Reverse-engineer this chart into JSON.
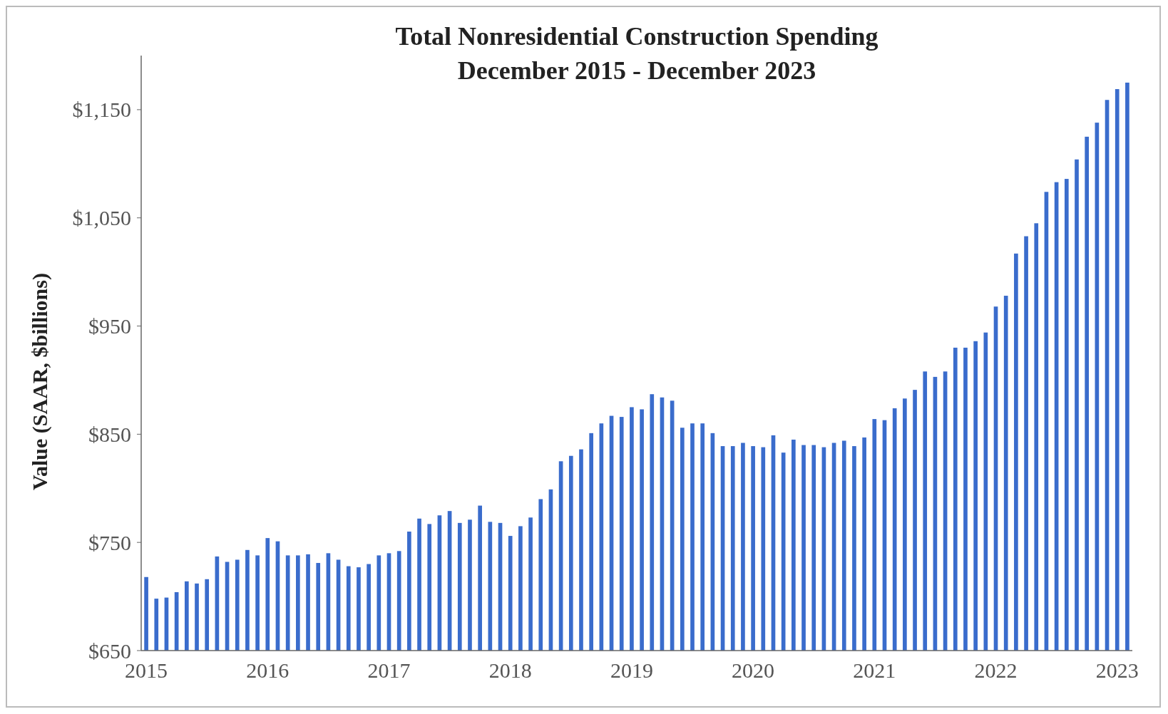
{
  "chart_data": {
    "type": "bar",
    "title": "Total Nonresidential Construction Spending",
    "subtitle": "December 2015 - December 2023",
    "ylabel": "Value (SAAR, $billions)",
    "categories": [
      "2015",
      null,
      null,
      null,
      null,
      null,
      null,
      null,
      null,
      null,
      null,
      null,
      "2016",
      null,
      null,
      null,
      null,
      null,
      null,
      null,
      null,
      null,
      null,
      null,
      "2017",
      null,
      null,
      null,
      null,
      null,
      null,
      null,
      null,
      null,
      null,
      null,
      "2018",
      null,
      null,
      null,
      null,
      null,
      null,
      null,
      null,
      null,
      null,
      null,
      "2019",
      null,
      null,
      null,
      null,
      null,
      null,
      null,
      null,
      null,
      null,
      null,
      "2020",
      null,
      null,
      null,
      null,
      null,
      null,
      null,
      null,
      null,
      null,
      null,
      "2021",
      null,
      null,
      null,
      null,
      null,
      null,
      null,
      null,
      null,
      null,
      null,
      "2022",
      null,
      null,
      null,
      null,
      null,
      null,
      null,
      null,
      null,
      null,
      null,
      "2023",
      null
    ],
    "values": [
      718,
      698,
      699,
      704,
      714,
      712,
      716,
      737,
      732,
      734,
      743,
      738,
      754,
      751,
      738,
      738,
      739,
      731,
      740,
      734,
      728,
      727,
      730,
      738,
      740,
      742,
      760,
      772,
      767,
      775,
      779,
      768,
      771,
      784,
      769,
      768,
      756,
      765,
      773,
      790,
      799,
      825,
      830,
      836,
      851,
      860,
      867,
      866,
      875,
      873,
      887,
      884,
      881,
      856,
      860,
      860,
      851,
      839,
      839,
      842,
      839,
      838,
      849,
      833,
      845,
      840,
      840,
      838,
      842,
      844,
      839,
      847,
      864,
      863,
      874,
      883,
      891,
      908,
      903,
      908,
      930,
      930,
      936,
      944,
      968,
      978,
      1017,
      1033,
      1045,
      1074,
      1083,
      1086,
      1104,
      1125,
      1138,
      1159,
      1169,
      1175
    ],
    "color": "#3a6ccc",
    "ylim": [
      650,
      1200
    ],
    "yticks": [
      {
        "value": 650,
        "label": "$650"
      },
      {
        "value": 750,
        "label": "$750"
      },
      {
        "value": 850,
        "label": "$850"
      },
      {
        "value": 950,
        "label": "$950"
      },
      {
        "value": 1050,
        "label": "$1,050"
      },
      {
        "value": 1150,
        "label": "$1,150"
      }
    ],
    "grid": false
  }
}
